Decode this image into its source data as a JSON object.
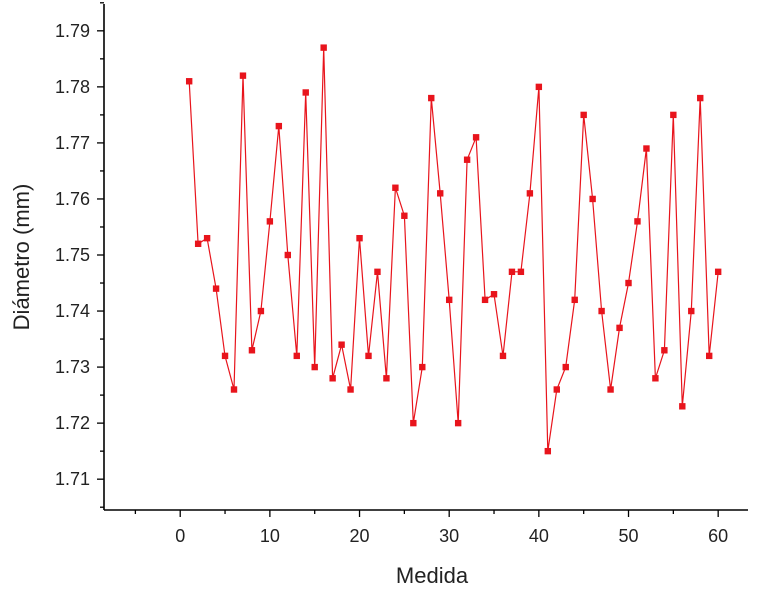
{
  "chart_data": {
    "type": "line",
    "title": "",
    "xlabel": "Medida",
    "ylabel": "Diámetro (mm)",
    "xlim": [
      -8.5,
      65
    ],
    "ylim": [
      1.7045,
      1.7955
    ],
    "xticks": [
      0,
      10,
      20,
      30,
      40,
      50,
      60
    ],
    "yticks": [
      1.71,
      1.72,
      1.73,
      1.74,
      1.75,
      1.76,
      1.77,
      1.78,
      1.79
    ],
    "xtick_labels": [
      "0",
      "10",
      "20",
      "30",
      "40",
      "50",
      "60"
    ],
    "ytick_labels": [
      "1.71",
      "1.72",
      "1.73",
      "1.74",
      "1.75",
      "1.76",
      "1.77",
      "1.78",
      "1.79"
    ],
    "grid": false,
    "legend": "none",
    "marker": "square",
    "color": "#e8141c",
    "series": [
      {
        "x": [
          1,
          2,
          3,
          4,
          5,
          6,
          7,
          8,
          9,
          10,
          11,
          12,
          13,
          14,
          15,
          16,
          17,
          18,
          19,
          20,
          21,
          22,
          23,
          24,
          25,
          26,
          27,
          28,
          29,
          30,
          31,
          32,
          33,
          34,
          35,
          36,
          37,
          38,
          39,
          40,
          41,
          42,
          43,
          44,
          45,
          46,
          47,
          48,
          49,
          50,
          51,
          52,
          53,
          54,
          55,
          56,
          57,
          58,
          59,
          60
        ],
        "y": [
          1.781,
          1.752,
          1.753,
          1.744,
          1.732,
          1.726,
          1.782,
          1.733,
          1.74,
          1.756,
          1.773,
          1.75,
          1.732,
          1.779,
          1.73,
          1.787,
          1.728,
          1.734,
          1.726,
          1.753,
          1.732,
          1.747,
          1.728,
          1.762,
          1.757,
          1.72,
          1.73,
          1.778,
          1.761,
          1.742,
          1.72,
          1.767,
          1.771,
          1.742,
          1.743,
          1.732,
          1.747,
          1.747,
          1.761,
          1.78,
          1.715,
          1.726,
          1.73,
          1.742,
          1.775,
          1.76,
          1.74,
          1.726,
          1.737,
          1.745,
          1.756,
          1.769,
          1.728,
          1.733,
          1.775,
          1.723,
          1.74,
          1.778,
          1.732,
          1.747
        ]
      }
    ]
  }
}
